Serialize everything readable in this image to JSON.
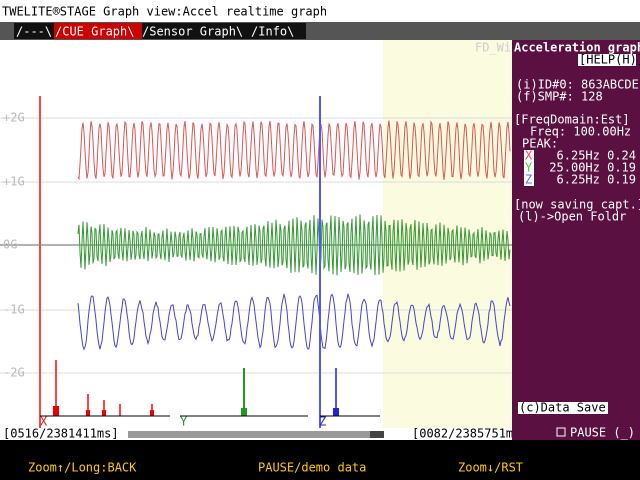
{
  "header": {
    "title": "TWELITE®STAGE Graph view:Accel realtime graph"
  },
  "tabs": [
    "/---\\",
    "/CUE Graph\\",
    "/Sensor Graph\\",
    "/Info\\"
  ],
  "graph": {
    "y_labels": [
      "+2G",
      "+1G",
      "0G",
      "-1G",
      "-2G"
    ],
    "watermark": "FD_Wi",
    "axis_labels": [
      "X",
      "Y",
      "Z"
    ]
  },
  "status": {
    "left": "[0516/2381411ms]",
    "right": "[0082/2385751ms]"
  },
  "panel": {
    "title": "Acceleration graph",
    "help": "[HELP(H)]",
    "id": "(i)ID#0: 863ABCDE",
    "smp": "(f)SMP#: 128",
    "freq_domain": "[FreqDomain:Est]",
    "freq": "Freq: 100.00Hz",
    "peak": "PEAK:",
    "peaks": [
      {
        "axis": "X",
        "text": "6.25Hz 0.24"
      },
      {
        "axis": "Y",
        "text": "25.00Hz 0.19"
      },
      {
        "axis": "Z",
        "text": "6.25Hz 0.19"
      }
    ],
    "saving": "[now saving capt.]",
    "open": "(l)->Open Foldr",
    "data_save": "(c)Data Save",
    "pause": "PAUSE (_)"
  },
  "footer": [
    "Zoom↑/Long:BACK",
    "PAUSE/demo data",
    "Zoom↓/RST"
  ]
}
